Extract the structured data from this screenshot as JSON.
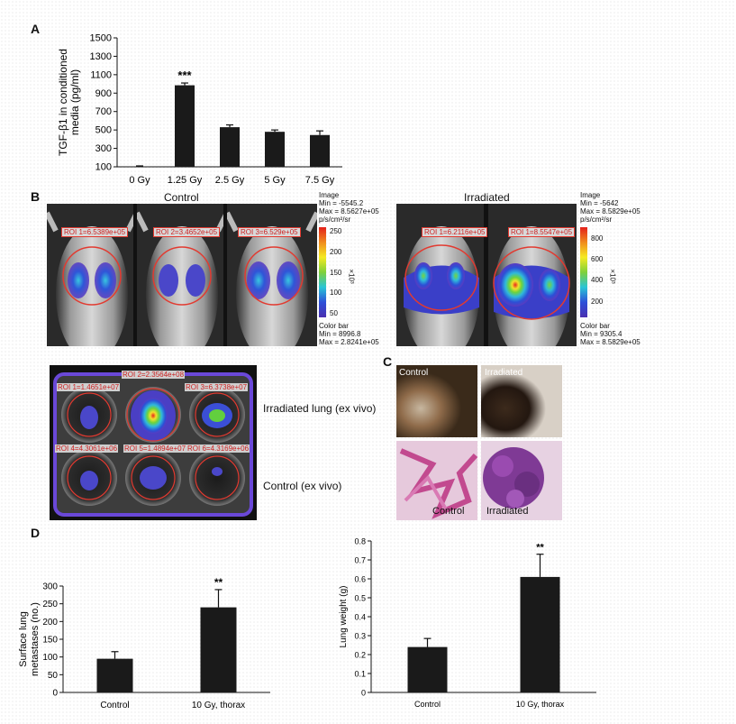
{
  "panels": {
    "a": "A",
    "b": "B",
    "c": "C",
    "d": "D"
  },
  "chart_data": [
    {
      "type": "bar",
      "categories": [
        "0 Gy",
        "1.25 Gy",
        "2.5 Gy",
        "5 Gy",
        "7.5 Gy"
      ],
      "values": [
        105,
        985,
        530,
        480,
        445
      ],
      "errors": [
        5,
        25,
        25,
        20,
        45
      ],
      "ylabel": "TGF-β1 in conditioned media (pg/ml)",
      "ylim": [
        100,
        1500
      ],
      "yticks": [
        100,
        300,
        500,
        700,
        900,
        1100,
        1300,
        1500
      ],
      "annotations": [
        "",
        "***",
        "",
        "",
        ""
      ],
      "grid": false
    },
    {
      "type": "bar",
      "categories": [
        "Control",
        "10 Gy, thorax"
      ],
      "values": [
        95,
        240
      ],
      "errors": [
        20,
        50
      ],
      "ylabel": "Surface lung metastases (no.)",
      "ylim": [
        0,
        300
      ],
      "yticks": [
        0,
        50,
        100,
        150,
        200,
        250,
        300
      ],
      "annotations": [
        "",
        "**"
      ],
      "grid": false
    },
    {
      "type": "bar",
      "categories": [
        "Control",
        "10 Gy, thorax"
      ],
      "values": [
        0.24,
        0.61
      ],
      "errors": [
        0.045,
        0.12
      ],
      "ylabel": "Lung weight (g)",
      "ylim": [
        0,
        0.8
      ],
      "yticks": [
        0,
        0.1,
        0.2,
        0.3,
        0.4,
        0.5,
        0.6,
        0.7,
        0.8
      ],
      "annotations": [
        "",
        "**"
      ],
      "grid": false
    }
  ],
  "imaging": {
    "control_title": "Control",
    "irradiated_title": "Irradiated",
    "control_rois": [
      "ROI 1=6.5389e+05",
      "ROI 2=3.4652e+05",
      "ROI 3=6.529e+05"
    ],
    "irradiated_rois": [
      "ROI 1=6.2116e+05",
      "ROI 1=8.5547e+05"
    ],
    "control_scale": {
      "image_label": "Image",
      "min": "Min = -5545.2",
      "max": "Max = 8.5627e+05",
      "units": "p/s/cm²/sr",
      "ticks": [
        "250",
        "200",
        "150",
        "100",
        "50"
      ],
      "exponent": "×10³",
      "cbar_label": "Color bar",
      "cbar_min": "Min = 8996.8",
      "cbar_max": "Max = 2.8241e+05"
    },
    "irradiated_scale": {
      "image_label": "Image",
      "min": "Min = -5642",
      "max": "Max = 8.5829e+05",
      "units": "p/s/cm²/sr",
      "ticks": [
        "800",
        "600",
        "400",
        "200"
      ],
      "exponent": "×10³",
      "cbar_label": "Color bar",
      "cbar_min": "Min = 9305.4",
      "cbar_max": "Max = 8.5829e+05"
    },
    "exvivo_rois": [
      "ROI 1=1.4651e+07",
      "ROI 2=2.3564e+08",
      "ROI 3=6.3738e+07",
      "ROI 4=4.3061e+06",
      "ROI 5=1.4894e+07",
      "ROI 6=4.3169e+06"
    ],
    "exvivo_irradiated_label": "Irradiated lung (ex vivo)",
    "exvivo_control_label": "Control (ex vivo)"
  },
  "histology": {
    "top_control": "Control",
    "top_irradiated": "Irradiated",
    "bottom_control": "Control",
    "bottom_irradiated": "Irradiated"
  }
}
